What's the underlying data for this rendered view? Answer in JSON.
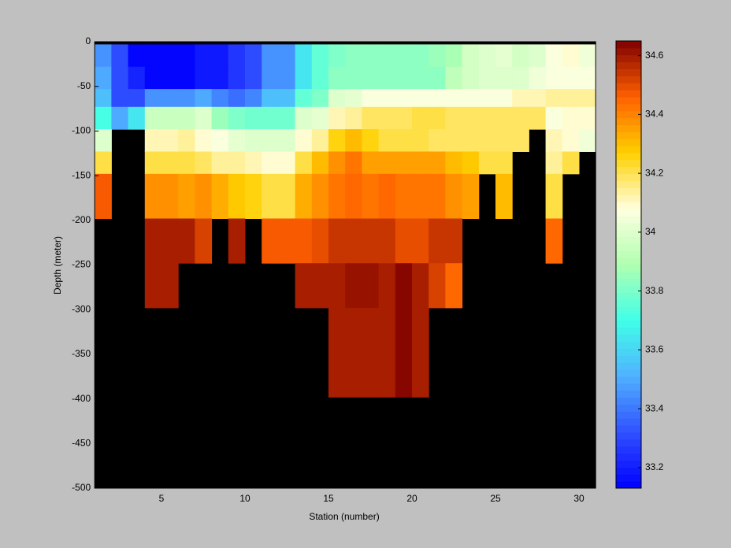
{
  "chart_data": {
    "type": "heatmap",
    "xlabel": "Station (number)",
    "ylabel": "Depth (meter)",
    "x": [
      1,
      2,
      3,
      4,
      5,
      6,
      7,
      8,
      9,
      10,
      11,
      12,
      13,
      14,
      15,
      16,
      17,
      18,
      19,
      20,
      21,
      22,
      23,
      24,
      25,
      26,
      27,
      28,
      29,
      30,
      31
    ],
    "y": [
      -3,
      -28,
      -53,
      -73,
      -98,
      -123,
      -148,
      -198,
      -248,
      -298,
      -398,
      -500
    ],
    "z": [
      [
        33.45,
        33.3,
        33.15,
        33.15,
        33.15,
        33.15,
        33.18,
        33.2,
        33.25,
        33.3,
        33.45,
        33.45,
        33.65,
        33.75,
        33.8,
        33.82,
        33.84,
        33.82,
        33.84,
        33.82,
        33.85,
        33.88,
        33.98,
        34.0,
        34.02,
        33.98,
        34.0,
        34.08,
        34.1,
        34.05
      ],
      [
        33.5,
        33.3,
        33.22,
        33.15,
        33.15,
        33.15,
        33.18,
        33.2,
        33.25,
        33.3,
        33.45,
        33.45,
        33.65,
        33.75,
        33.84,
        33.84,
        33.84,
        33.84,
        33.84,
        33.84,
        33.84,
        33.93,
        33.98,
        34.0,
        34.0,
        34.0,
        34.05,
        34.08,
        34.08,
        34.08
      ],
      [
        33.55,
        33.3,
        33.3,
        33.45,
        33.45,
        33.45,
        33.5,
        33.42,
        33.38,
        33.42,
        33.55,
        33.55,
        33.75,
        33.8,
        34.0,
        34.02,
        34.06,
        34.08,
        34.08,
        34.08,
        34.08,
        34.08,
        34.08,
        34.08,
        34.08,
        34.12,
        34.12,
        34.15,
        34.15,
        34.15
      ],
      [
        33.7,
        33.5,
        33.65,
        33.95,
        33.95,
        33.95,
        34.0,
        33.85,
        33.8,
        33.78,
        33.78,
        33.78,
        34.0,
        34.02,
        34.12,
        34.15,
        34.18,
        34.18,
        34.18,
        34.2,
        34.2,
        34.18,
        34.18,
        34.18,
        34.18,
        34.18,
        34.18,
        34.08,
        34.1,
        34.1
      ],
      [
        34.0,
        null,
        null,
        34.12,
        34.12,
        34.13,
        34.1,
        34.08,
        34.02,
        34.0,
        34.0,
        34.0,
        34.1,
        34.15,
        34.25,
        34.3,
        34.25,
        34.22,
        34.2,
        34.2,
        34.18,
        34.18,
        34.18,
        34.18,
        34.18,
        34.18,
        null,
        34.12,
        34.1,
        34.05
      ],
      [
        34.22,
        null,
        null,
        34.2,
        34.2,
        34.2,
        34.18,
        34.15,
        34.13,
        34.12,
        34.1,
        34.1,
        34.22,
        34.3,
        34.38,
        34.42,
        34.35,
        34.35,
        34.35,
        34.35,
        34.35,
        34.3,
        34.28,
        34.22,
        34.22,
        null,
        null,
        34.15,
        34.2,
        null
      ],
      [
        34.48,
        null,
        null,
        34.38,
        34.38,
        34.35,
        34.38,
        34.33,
        34.28,
        34.25,
        34.22,
        34.22,
        34.33,
        34.38,
        34.42,
        34.45,
        34.42,
        34.45,
        34.42,
        34.42,
        34.42,
        34.38,
        34.35,
        null,
        34.3,
        null,
        null,
        34.22,
        null,
        null
      ],
      [
        null,
        null,
        null,
        34.58,
        34.58,
        34.58,
        34.52,
        null,
        34.58,
        null,
        34.48,
        34.48,
        34.48,
        34.5,
        34.55,
        34.55,
        34.55,
        34.55,
        34.5,
        34.5,
        34.55,
        34.55,
        null,
        null,
        null,
        null,
        null,
        34.45,
        null,
        null
      ],
      [
        null,
        null,
        null,
        34.58,
        34.58,
        null,
        null,
        null,
        null,
        null,
        null,
        null,
        34.58,
        34.58,
        34.58,
        34.62,
        34.62,
        34.58,
        34.63,
        34.58,
        34.52,
        34.45,
        null,
        null,
        null,
        null,
        null,
        null,
        null,
        null
      ],
      [
        null,
        null,
        null,
        null,
        null,
        null,
        null,
        null,
        null,
        null,
        null,
        null,
        null,
        null,
        34.6,
        34.6,
        34.6,
        34.58,
        34.63,
        34.6,
        null,
        null,
        null,
        null,
        null,
        null,
        null,
        null,
        null,
        null
      ],
      [
        null,
        null,
        null,
        null,
        null,
        null,
        null,
        null,
        null,
        null,
        null,
        null,
        null,
        null,
        null,
        null,
        null,
        null,
        null,
        null,
        null,
        null,
        null,
        null,
        null,
        null,
        null,
        null,
        null,
        null
      ]
    ],
    "xlim": [
      1,
      31
    ],
    "ylim": [
      -500,
      0
    ],
    "xticks": [
      5,
      10,
      15,
      20,
      25,
      30
    ],
    "yticks": [
      0,
      -50,
      -100,
      -150,
      -200,
      -250,
      -300,
      -350,
      -400,
      -450,
      -500
    ],
    "clim": [
      33.13,
      34.65
    ],
    "cticks": [
      33.2,
      33.4,
      33.6,
      33.8,
      34,
      34.2,
      34.4,
      34.6
    ],
    "colormap": [
      "#0000ff",
      "#3050ff",
      "#50b0ff",
      "#40ffe8",
      "#b0ffb0",
      "#ffffe0",
      "#ffd000",
      "#ff6000",
      "#800000"
    ],
    "levels": 64,
    "nan_color": "#000000"
  }
}
